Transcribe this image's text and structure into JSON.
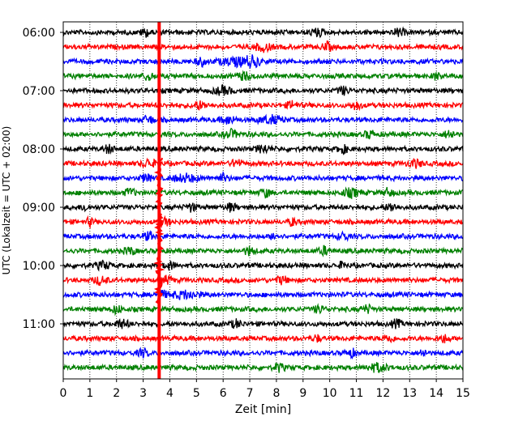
{
  "chart_data": {
    "type": "line",
    "title": "",
    "xlabel": "Zeit  [min]",
    "ylabel": "UTC (Lokalzeit = UTC + 02:00)",
    "xlim": [
      0,
      15
    ],
    "x_ticks": [
      0,
      1,
      2,
      3,
      4,
      5,
      6,
      7,
      8,
      9,
      10,
      11,
      12,
      13,
      14,
      15
    ],
    "y_tick_labels": [
      "06:00",
      "07:00",
      "08:00",
      "09:00",
      "10:00",
      "11:00"
    ],
    "grid": "vertical dotted at each minute",
    "traces_per_hour": 4,
    "trace_interval_minutes": 15,
    "color_cycle": [
      "#000000",
      "#ff0000",
      "#0000ff",
      "#008000"
    ],
    "marker_line": {
      "x_minutes": 3.6,
      "color": "#ff0000"
    },
    "series": [
      {
        "start": "06:00",
        "color": "#000000",
        "bursts": [
          [
            3.1,
            0.3
          ],
          [
            9.5,
            0.4
          ],
          [
            12.6,
            0.3
          ]
        ]
      },
      {
        "start": "06:15",
        "color": "#ff0000",
        "bursts": [
          [
            7.5,
            0.5
          ],
          [
            9.9,
            0.3
          ]
        ]
      },
      {
        "start": "06:30",
        "color": "#0000ff",
        "bursts": [
          [
            6.5,
            1.0
          ],
          [
            7.1,
            0.5
          ],
          [
            5.2,
            0.3
          ]
        ]
      },
      {
        "start": "06:45",
        "color": "#008000",
        "bursts": [
          [
            3.2,
            0.3
          ],
          [
            6.8,
            0.4
          ],
          [
            14.0,
            0.2
          ]
        ]
      },
      {
        "start": "07:00",
        "color": "#000000",
        "bursts": [
          [
            6.0,
            0.5
          ],
          [
            10.5,
            0.3
          ]
        ]
      },
      {
        "start": "07:15",
        "color": "#ff0000",
        "bursts": [
          [
            5.1,
            0.4
          ],
          [
            8.6,
            0.3
          ],
          [
            11.0,
            0.3
          ]
        ]
      },
      {
        "start": "07:30",
        "color": "#0000ff",
        "bursts": [
          [
            7.8,
            0.7
          ],
          [
            6.2,
            0.4
          ],
          [
            3.2,
            0.3
          ]
        ]
      },
      {
        "start": "07:45",
        "color": "#008000",
        "bursts": [
          [
            6.3,
            0.4
          ],
          [
            11.5,
            0.3
          ],
          [
            14.5,
            0.3
          ]
        ]
      },
      {
        "start": "08:00",
        "color": "#000000",
        "bursts": [
          [
            1.7,
            0.3
          ],
          [
            7.5,
            0.4
          ],
          [
            10.5,
            0.3
          ]
        ]
      },
      {
        "start": "08:15",
        "color": "#ff0000",
        "bursts": [
          [
            3.2,
            0.4
          ],
          [
            6.5,
            0.3
          ],
          [
            13.2,
            0.4
          ]
        ]
      },
      {
        "start": "08:30",
        "color": "#0000ff",
        "bursts": [
          [
            4.6,
            0.7
          ],
          [
            3.1,
            0.3
          ],
          [
            6.0,
            0.3
          ]
        ]
      },
      {
        "start": "08:45",
        "color": "#008000",
        "bursts": [
          [
            2.5,
            0.3
          ],
          [
            7.6,
            0.3
          ],
          [
            10.8,
            0.5
          ],
          [
            12.2,
            0.3
          ]
        ]
      },
      {
        "start": "09:00",
        "color": "#000000",
        "bursts": [
          [
            0.8,
            0.2
          ],
          [
            4.8,
            0.3
          ],
          [
            6.3,
            0.3
          ],
          [
            12.3,
            0.3
          ]
        ]
      },
      {
        "start": "09:15",
        "color": "#ff0000",
        "bursts": [
          [
            3.8,
            0.3
          ],
          [
            8.6,
            0.2
          ],
          [
            1.0,
            0.2
          ]
        ]
      },
      {
        "start": "09:30",
        "color": "#0000ff",
        "bursts": [
          [
            3.2,
            0.3
          ],
          [
            7.9,
            0.2
          ],
          [
            10.5,
            0.3
          ]
        ]
      },
      {
        "start": "09:45",
        "color": "#008000",
        "bursts": [
          [
            2.5,
            0.3
          ],
          [
            7.0,
            0.3
          ],
          [
            9.8,
            0.3
          ]
        ]
      },
      {
        "start": "10:00",
        "color": "#000000",
        "bursts": [
          [
            1.5,
            0.4
          ],
          [
            4.0,
            0.3
          ],
          [
            10.5,
            0.2
          ]
        ]
      },
      {
        "start": "10:15",
        "color": "#ff0000",
        "bursts": [
          [
            1.4,
            0.4
          ],
          [
            3.9,
            0.3
          ],
          [
            8.2,
            0.3
          ]
        ]
      },
      {
        "start": "10:30",
        "color": "#0000ff",
        "bursts": [
          [
            4.6,
            0.8
          ],
          [
            3.7,
            0.3
          ]
        ]
      },
      {
        "start": "10:45",
        "color": "#008000",
        "bursts": [
          [
            2.0,
            0.3
          ],
          [
            9.6,
            0.3
          ],
          [
            11.4,
            0.3
          ]
        ]
      },
      {
        "start": "11:00",
        "color": "#000000",
        "bursts": [
          [
            2.2,
            0.4
          ],
          [
            6.5,
            0.3
          ],
          [
            12.5,
            0.3
          ]
        ]
      },
      {
        "start": "11:15",
        "color": "#ff0000",
        "bursts": [
          [
            9.5,
            0.2
          ],
          [
            12.2,
            0.3
          ],
          [
            14.3,
            0.3
          ]
        ]
      },
      {
        "start": "11:30",
        "color": "#0000ff",
        "bursts": [
          [
            3.0,
            0.3
          ],
          [
            10.8,
            0.3
          ],
          [
            13.5,
            0.2
          ]
        ]
      },
      {
        "start": "11:45",
        "color": "#008000",
        "bursts": [
          [
            8.1,
            0.3
          ],
          [
            11.8,
            0.6
          ]
        ]
      }
    ]
  }
}
